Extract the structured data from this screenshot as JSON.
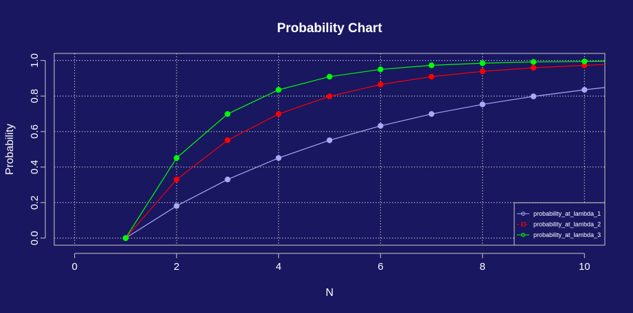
{
  "chart_data": {
    "type": "line",
    "title": "Probability Chart",
    "xlabel": "N",
    "ylabel": "Probability",
    "xlim": [
      -0.4,
      10.4
    ],
    "ylim": [
      -0.04,
      1.04
    ],
    "xticks": [
      0,
      2,
      4,
      6,
      8,
      10
    ],
    "yticks": [
      0.0,
      0.2,
      0.4,
      0.6,
      0.8,
      1.0
    ],
    "xtick_labels": [
      "0",
      "2",
      "4",
      "6",
      "8",
      "10"
    ],
    "ytick_labels": [
      "0.0",
      "0.2",
      "0.4",
      "0.6",
      "0.8",
      "1.0"
    ],
    "grid": true,
    "legend_position": "bottom-right",
    "x": [
      1,
      2,
      3,
      4,
      5,
      6,
      7,
      8,
      9,
      10
    ],
    "series": [
      {
        "name": "probability_at_lambda_1",
        "color": "#a9a9f5",
        "marker": "circle",
        "values": [
          0.0,
          0.181,
          0.33,
          0.451,
          0.551,
          0.632,
          0.699,
          0.753,
          0.798,
          0.835
        ],
        "line_extends_to": {
          "x": 10.4,
          "y": 0.848
        }
      },
      {
        "name": "probability_at_lambda_2",
        "color": "#ff0000",
        "marker": "circle",
        "values": [
          0.0,
          0.33,
          0.551,
          0.699,
          0.798,
          0.865,
          0.909,
          0.939,
          0.959,
          0.973
        ],
        "line_extends_to": {
          "x": 10.4,
          "y": 0.977
        }
      },
      {
        "name": "probability_at_lambda_3",
        "color": "#00ff00",
        "marker": "circle",
        "values": [
          0.0,
          0.451,
          0.699,
          0.835,
          0.909,
          0.95,
          0.973,
          0.985,
          0.992,
          0.995
        ],
        "line_extends_to": {
          "x": 10.4,
          "y": 0.996
        }
      }
    ]
  },
  "colors": {
    "background": "#191760",
    "axes": "#cccccc",
    "grid": "#cccccc",
    "text": "#ffffff"
  }
}
